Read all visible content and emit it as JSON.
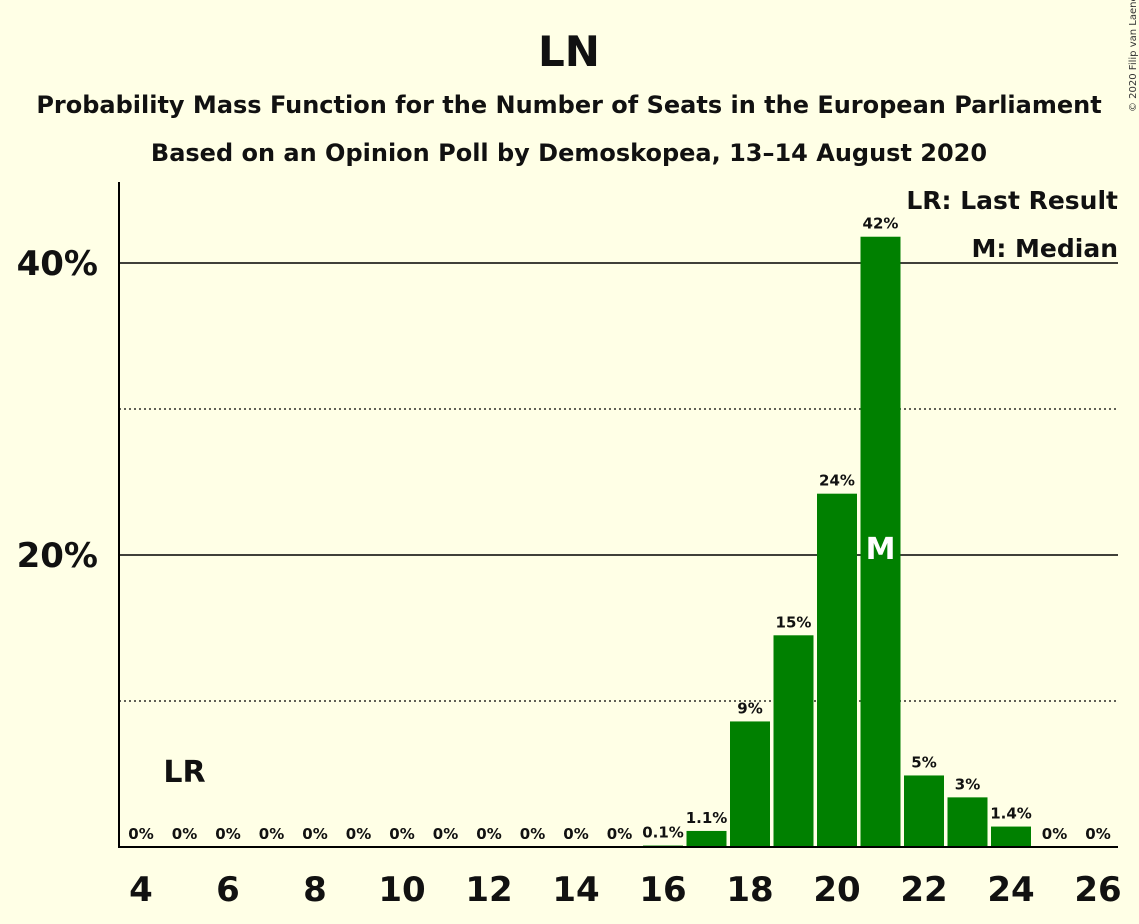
{
  "title": "LN",
  "subtitle1": "Probability Mass Function for the Number of Seats in the European Parliament",
  "subtitle2": "Based on an Opinion Poll by Demoskopea, 13–14 August 2020",
  "copyright": "© 2020 Filip van Laenen",
  "legend": {
    "lr": "LR: Last Result",
    "median": "M: Median"
  },
  "colors": {
    "background": "#ffffe6",
    "bar": "#008000",
    "axis": "#000000"
  },
  "chart_data": {
    "type": "bar",
    "title": "LN",
    "xlabel": "",
    "ylabel": "",
    "ylim": [
      0,
      45
    ],
    "y_ticks": [
      20,
      40
    ],
    "y_tick_labels": [
      "20%",
      "40%"
    ],
    "minor_gridlines": [
      10,
      30
    ],
    "x_tick_labels": [
      "4",
      "6",
      "8",
      "10",
      "12",
      "14",
      "16",
      "18",
      "20",
      "22",
      "24",
      "26"
    ],
    "categories": [
      4,
      5,
      6,
      7,
      8,
      9,
      10,
      11,
      12,
      13,
      14,
      15,
      16,
      17,
      18,
      19,
      20,
      21,
      22,
      23,
      24,
      25,
      26
    ],
    "values": [
      0,
      0,
      0,
      0,
      0,
      0,
      0,
      0,
      0,
      0,
      0,
      0,
      0.1,
      1.1,
      8.6,
      14.5,
      24.2,
      41.8,
      4.9,
      3.4,
      1.4,
      0,
      0
    ],
    "labels": [
      "0%",
      "0%",
      "0%",
      "0%",
      "0%",
      "0%",
      "0%",
      "0%",
      "0%",
      "0%",
      "0%",
      "0%",
      "0.1%",
      "1.1%",
      "9%",
      "15%",
      "24%",
      "42%",
      "5%",
      "3%",
      "1.4%",
      "0%",
      "0%"
    ],
    "last_result": {
      "seat": 5,
      "label": "LR"
    },
    "median": {
      "seat": 21,
      "label": "M"
    },
    "grid": true
  }
}
